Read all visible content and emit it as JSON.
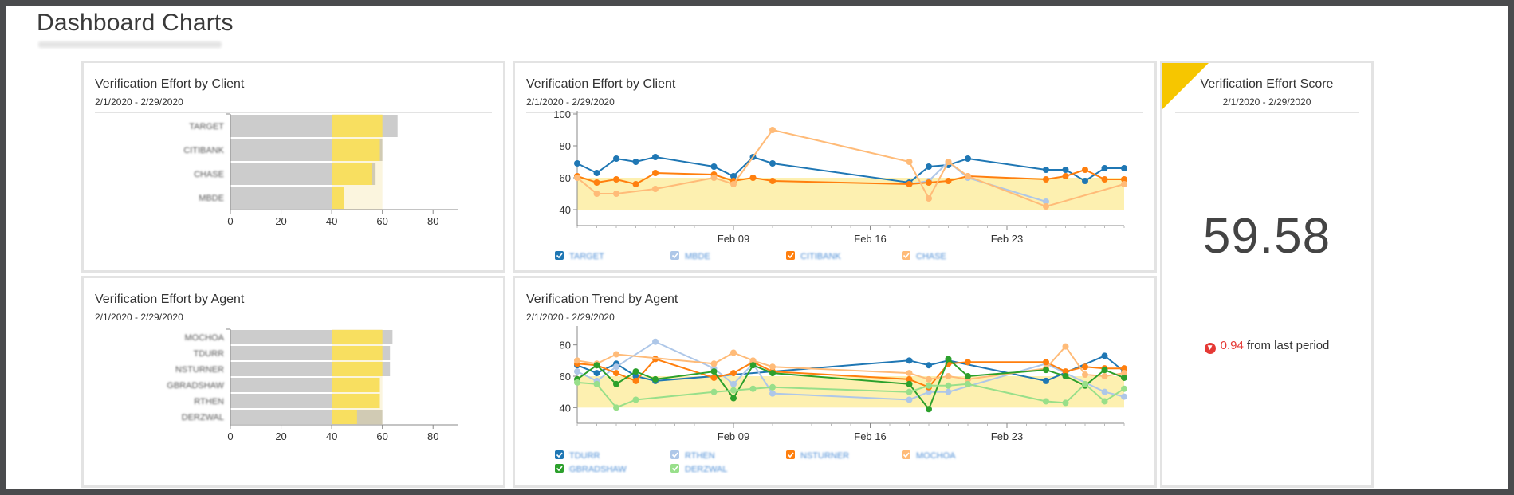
{
  "page": {
    "title": "Dashboard Charts"
  },
  "date_range": "2/1/2020 - 2/29/2020",
  "panels": {
    "client_bar": {
      "title": "Verification Effort by Client",
      "date": "2/1/2020 - 2/29/2020"
    },
    "client_line": {
      "title": "Verification Effort by Client",
      "date": "2/1/2020 - 2/29/2020"
    },
    "agent_bar": {
      "title": "Verification Effort by Agent",
      "date": "2/1/2020 - 2/29/2020"
    },
    "agent_line": {
      "title": "Verification Trend by Agent",
      "date": "2/1/2020 - 2/29/2020"
    },
    "score": {
      "title": "Verification Effort Score",
      "date": "2/1/2020 - 2/29/2020",
      "value": "59.58",
      "delta": "0.94",
      "delta_suffix": "from last period",
      "delta_icon": "arrow-down-circle-icon"
    }
  },
  "colors": {
    "band": "#fdf0b0",
    "bar_gray": "#cccccc",
    "bar_yellow": "#fce566",
    "score_flag": "#f6c600",
    "down": "#e53935"
  },
  "chart_data": [
    {
      "type": "bar",
      "orientation": "horizontal",
      "title": "Verification Effort by Client",
      "categories": [
        "TARGET",
        "CITIBANK",
        "CHASE",
        "MBDE"
      ],
      "series": [
        {
          "values": [
            66,
            60,
            57,
            45
          ]
        }
      ],
      "overlay": {
        "values": [
          60,
          59,
          56,
          45
        ]
      },
      "xlim": [
        0,
        90
      ],
      "xticks": [
        0,
        20,
        40,
        60,
        80
      ],
      "band": [
        40,
        60
      ]
    },
    {
      "type": "line",
      "title": "Verification Effort by Client",
      "x_ticks": [
        "Feb 09",
        "Feb 16",
        "Feb 23"
      ],
      "x_days": [
        1,
        29
      ],
      "ylim": [
        30,
        100
      ],
      "yticks": [
        40,
        60,
        80,
        100
      ],
      "band": [
        40,
        60
      ],
      "series": [
        {
          "name": "TARGET",
          "color": "#1f77b4",
          "points": [
            [
              1,
              69
            ],
            [
              2,
              63
            ],
            [
              3,
              72
            ],
            [
              4,
              70
            ],
            [
              5,
              73
            ],
            [
              8,
              67
            ],
            [
              9,
              61
            ],
            [
              10,
              73
            ],
            [
              11,
              69
            ],
            [
              18,
              57
            ],
            [
              19,
              67
            ],
            [
              20,
              68
            ],
            [
              21,
              72
            ],
            [
              25,
              65
            ],
            [
              26,
              65
            ],
            [
              27,
              58
            ],
            [
              28,
              66
            ],
            [
              29,
              66
            ]
          ]
        },
        {
          "name": "MBDE",
          "color": "#aec7e8",
          "points": [
            [
              18,
              56
            ],
            [
              19,
              58
            ],
            [
              20,
              70
            ],
            [
              21,
              60
            ],
            [
              25,
              45
            ]
          ]
        },
        {
          "name": "CITIBANK",
          "color": "#ff7f0e",
          "points": [
            [
              1,
              61
            ],
            [
              2,
              57
            ],
            [
              3,
              59
            ],
            [
              4,
              56
            ],
            [
              5,
              63
            ],
            [
              8,
              62
            ],
            [
              9,
              58
            ],
            [
              10,
              60
            ],
            [
              11,
              58
            ],
            [
              18,
              56
            ],
            [
              19,
              57
            ],
            [
              20,
              58
            ],
            [
              21,
              61
            ],
            [
              25,
              59
            ],
            [
              26,
              61
            ],
            [
              27,
              65
            ],
            [
              28,
              59
            ],
            [
              29,
              59
            ]
          ]
        },
        {
          "name": "CHASE",
          "color": "#ffbb78",
          "points": [
            [
              1,
              60
            ],
            [
              2,
              50
            ],
            [
              3,
              50
            ],
            [
              5,
              53
            ],
            [
              8,
              60
            ],
            [
              9,
              56
            ],
            [
              11,
              90
            ],
            [
              18,
              70
            ],
            [
              19,
              47
            ],
            [
              20,
              70
            ],
            [
              21,
              61
            ],
            [
              25,
              42
            ],
            [
              29,
              56
            ]
          ]
        }
      ]
    },
    {
      "type": "bar",
      "orientation": "horizontal",
      "title": "Verification Effort by Agent",
      "categories": [
        "MOCHOA",
        "TDURR",
        "NSTURNER",
        "GBRADSHAW",
        "RTHEN",
        "DERZWAL"
      ],
      "series": [
        {
          "values": [
            64,
            63,
            63,
            59,
            59,
            60
          ]
        }
      ],
      "overlay": {
        "values": [
          60,
          60,
          60,
          59,
          59,
          50
        ]
      },
      "xlim": [
        0,
        90
      ],
      "xticks": [
        0,
        20,
        40,
        60,
        80
      ],
      "band": [
        40,
        60
      ]
    },
    {
      "type": "line",
      "title": "Verification Trend by Agent",
      "x_ticks": [
        "Feb 09",
        "Feb 16",
        "Feb 23"
      ],
      "x_days": [
        1,
        29
      ],
      "ylim": [
        30,
        90
      ],
      "yticks": [
        40,
        60,
        80
      ],
      "band": [
        40,
        60
      ],
      "series": [
        {
          "name": "TDURR",
          "color": "#1f77b4",
          "points": [
            [
              1,
              67
            ],
            [
              2,
              62
            ],
            [
              3,
              68
            ],
            [
              4,
              60
            ],
            [
              5,
              57
            ],
            [
              18,
              70
            ],
            [
              19,
              67
            ],
            [
              20,
              70
            ],
            [
              25,
              57
            ],
            [
              28,
              73
            ],
            [
              29,
              63
            ]
          ]
        },
        {
          "name": "RTHEN",
          "color": "#aec7e8",
          "points": [
            [
              1,
              63
            ],
            [
              2,
              57
            ],
            [
              3,
              66
            ],
            [
              5,
              82
            ],
            [
              8,
              65
            ],
            [
              9,
              55
            ],
            [
              10,
              68
            ],
            [
              11,
              49
            ],
            [
              18,
              45
            ],
            [
              19,
              50
            ],
            [
              20,
              50
            ],
            [
              25,
              68
            ],
            [
              28,
              50
            ],
            [
              29,
              47
            ]
          ]
        },
        {
          "name": "NSTURNER",
          "color": "#ff7f0e",
          "points": [
            [
              1,
              68
            ],
            [
              2,
              67
            ],
            [
              3,
              62
            ],
            [
              4,
              57
            ],
            [
              5,
              71
            ],
            [
              8,
              59
            ],
            [
              9,
              62
            ],
            [
              10,
              69
            ],
            [
              11,
              63
            ],
            [
              18,
              58
            ],
            [
              19,
              53
            ],
            [
              20,
              68
            ],
            [
              21,
              69
            ],
            [
              25,
              69
            ],
            [
              26,
              63
            ],
            [
              27,
              66
            ],
            [
              28,
              65
            ],
            [
              29,
              65
            ]
          ]
        },
        {
          "name": "MOCHOA",
          "color": "#ffbb78",
          "points": [
            [
              1,
              70
            ],
            [
              2,
              68
            ],
            [
              3,
              74
            ],
            [
              8,
              68
            ],
            [
              9,
              75
            ],
            [
              10,
              70
            ],
            [
              11,
              66
            ],
            [
              18,
              62
            ],
            [
              19,
              58
            ],
            [
              20,
              60
            ],
            [
              21,
              58
            ],
            [
              25,
              65
            ],
            [
              26,
              79
            ],
            [
              27,
              61
            ],
            [
              28,
              60
            ],
            [
              29,
              62
            ]
          ]
        },
        {
          "name": "GBRADSHAW",
          "color": "#2ca02c",
          "points": [
            [
              1,
              58
            ],
            [
              2,
              67
            ],
            [
              3,
              55
            ],
            [
              4,
              63
            ],
            [
              5,
              58
            ],
            [
              8,
              63
            ],
            [
              9,
              46
            ],
            [
              10,
              67
            ],
            [
              11,
              62
            ],
            [
              18,
              55
            ],
            [
              19,
              39
            ],
            [
              20,
              71
            ],
            [
              21,
              60
            ],
            [
              25,
              64
            ],
            [
              26,
              60
            ],
            [
              27,
              54
            ],
            [
              28,
              64
            ],
            [
              29,
              59
            ]
          ]
        },
        {
          "name": "DERZWAL",
          "color": "#98df8a",
          "points": [
            [
              1,
              56
            ],
            [
              2,
              55
            ],
            [
              3,
              40
            ],
            [
              4,
              45
            ],
            [
              8,
              50
            ],
            [
              9,
              51
            ],
            [
              10,
              52
            ],
            [
              11,
              53
            ],
            [
              18,
              50
            ],
            [
              19,
              54
            ],
            [
              20,
              54
            ],
            [
              21,
              55
            ],
            [
              25,
              44
            ],
            [
              26,
              43
            ],
            [
              27,
              55
            ],
            [
              28,
              44
            ],
            [
              29,
              52
            ]
          ]
        }
      ]
    }
  ]
}
